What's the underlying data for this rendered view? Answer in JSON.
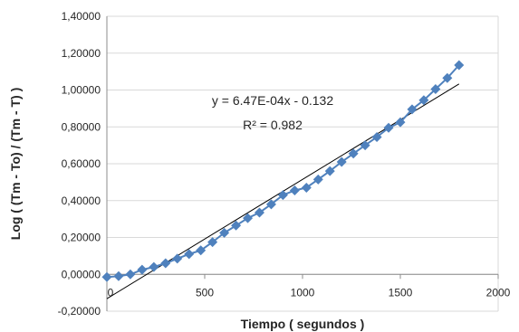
{
  "chart_data": {
    "type": "scatter",
    "xlabel": "Tiempo ( segundos )",
    "ylabel": "Log ( (Tm - To) / (Tm - T) )",
    "xlim": [
      0,
      2000
    ],
    "ylim": [
      -0.2,
      1.4
    ],
    "x_ticks": [
      "0",
      "500",
      "1000",
      "1500",
      "2000"
    ],
    "y_ticks": [
      "-0,20000",
      "0,00000",
      "0,20000",
      "0,40000",
      "0,60000",
      "0,80000",
      "1,00000",
      "1,20000",
      "1,40000"
    ],
    "grid": "horizontal",
    "marker_color": "#4F81BD",
    "trendline_color": "#000000",
    "trendline": {
      "slope": 0.000647,
      "intercept": -0.132,
      "x_range": [
        0,
        1800
      ],
      "equation": "y = 6.47E-04x - 0.132",
      "r_squared": "R² = 0.982"
    },
    "x": [
      0,
      60,
      120,
      180,
      240,
      300,
      360,
      420,
      480,
      540,
      600,
      660,
      720,
      780,
      840,
      900,
      960,
      1020,
      1080,
      1140,
      1200,
      1260,
      1320,
      1380,
      1440,
      1500,
      1560,
      1620,
      1680,
      1740,
      1800
    ],
    "y": [
      -0.015,
      -0.01,
      0.0,
      0.025,
      0.04,
      0.06,
      0.085,
      0.11,
      0.13,
      0.175,
      0.225,
      0.265,
      0.305,
      0.335,
      0.38,
      0.43,
      0.455,
      0.47,
      0.515,
      0.56,
      0.61,
      0.655,
      0.7,
      0.745,
      0.795,
      0.825,
      0.895,
      0.945,
      1.005,
      1.065,
      1.135
    ]
  }
}
